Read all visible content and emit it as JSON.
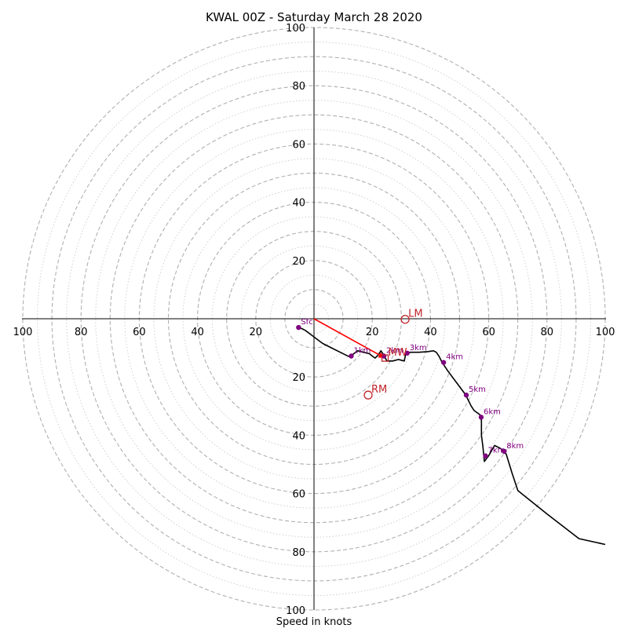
{
  "chart_data": {
    "type": "hodograph",
    "title": "KWAL 00Z - Saturday March 28 2020",
    "xlabel": "Speed in knots",
    "ylabel": "",
    "xlim": [
      -100,
      100
    ],
    "ylim": [
      -100,
      100
    ],
    "tick_values": [
      20,
      40,
      60,
      80,
      100
    ],
    "x_tick_labels": [
      "100",
      "80",
      "60",
      "40",
      "20",
      "20",
      "40",
      "60",
      "80",
      "100"
    ],
    "y_tick_labels": [
      "100",
      "80",
      "60",
      "40",
      "20",
      "20",
      "40",
      "60",
      "80",
      "100"
    ],
    "rings": {
      "major": [
        10,
        20,
        30,
        40,
        50,
        60,
        70,
        80,
        90,
        100
      ],
      "minor": [
        5,
        15,
        25,
        35,
        45,
        55,
        65,
        75,
        85,
        95
      ]
    },
    "colors": {
      "trace": "#000000",
      "height_marker": "#800080",
      "storm_motion": "#c0242a",
      "shear_vector": "#ff0000",
      "grid": "#b0b0b0"
    },
    "hodograph_trace": [
      [
        -5,
        -3
      ],
      [
        -3,
        -4
      ],
      [
        -1,
        -5.5
      ],
      [
        1,
        -7
      ],
      [
        3,
        -8.5
      ],
      [
        6,
        -10
      ],
      [
        9,
        -11.5
      ],
      [
        12,
        -13
      ],
      [
        13,
        -12.5
      ],
      [
        15,
        -11
      ],
      [
        17,
        -11.5
      ],
      [
        19,
        -12
      ],
      [
        20,
        -12.8
      ],
      [
        21,
        -13.5
      ],
      [
        22,
        -12.5
      ],
      [
        23,
        -11
      ],
      [
        24,
        -12.5
      ],
      [
        25,
        -14.5
      ],
      [
        27,
        -14.5
      ],
      [
        29,
        -14
      ],
      [
        31,
        -14.5
      ],
      [
        31.5,
        -12
      ],
      [
        33,
        -11.5
      ],
      [
        36,
        -11.5
      ],
      [
        39,
        -11.3
      ],
      [
        41,
        -11
      ],
      [
        42,
        -11.5
      ],
      [
        43,
        -13
      ],
      [
        44,
        -15
      ],
      [
        46,
        -18
      ],
      [
        49,
        -22
      ],
      [
        52,
        -26
      ],
      [
        54,
        -30
      ],
      [
        55,
        -31.5
      ],
      [
        57,
        -33
      ],
      [
        57.5,
        -35
      ],
      [
        57.5,
        -40
      ],
      [
        58,
        -44
      ],
      [
        58.3,
        -47
      ],
      [
        58.5,
        -49
      ],
      [
        60,
        -47
      ],
      [
        62,
        -43.5
      ],
      [
        64,
        -44.5
      ],
      [
        66,
        -46.5
      ],
      [
        68,
        -53
      ],
      [
        70,
        -59
      ],
      [
        80,
        -67
      ],
      [
        91,
        -75.5
      ],
      [
        100,
        -77.5
      ]
    ],
    "height_markers": [
      {
        "label": "Sfc",
        "x": -5.3,
        "y": -3
      },
      {
        "label": "1km",
        "x": 12.8,
        "y": -12.8
      },
      {
        "label": "2km",
        "x": 24,
        "y": -12.8
      },
      {
        "label": "3km",
        "x": 32,
        "y": -11.8
      },
      {
        "label": "4km",
        "x": 44.5,
        "y": -15
      },
      {
        "label": "5km",
        "x": 52.3,
        "y": -26.2
      },
      {
        "label": "6km",
        "x": 57.4,
        "y": -33.8
      },
      {
        "label": "7km",
        "x": 58.9,
        "y": -47.1
      },
      {
        "label": "8km",
        "x": 65.3,
        "y": -45.5
      }
    ],
    "storm_motions": [
      {
        "label": "LM",
        "x": 31.3,
        "y": -0.2,
        "marker": "circle"
      },
      {
        "label": "RM",
        "x": 18.6,
        "y": -26.2,
        "marker": "circle"
      },
      {
        "label": "MW",
        "x": 24.4,
        "y": -13.5,
        "marker": "square"
      }
    ],
    "shear_vector": {
      "from": [
        0,
        0
      ],
      "to": [
        24.4,
        -13.5
      ]
    }
  }
}
